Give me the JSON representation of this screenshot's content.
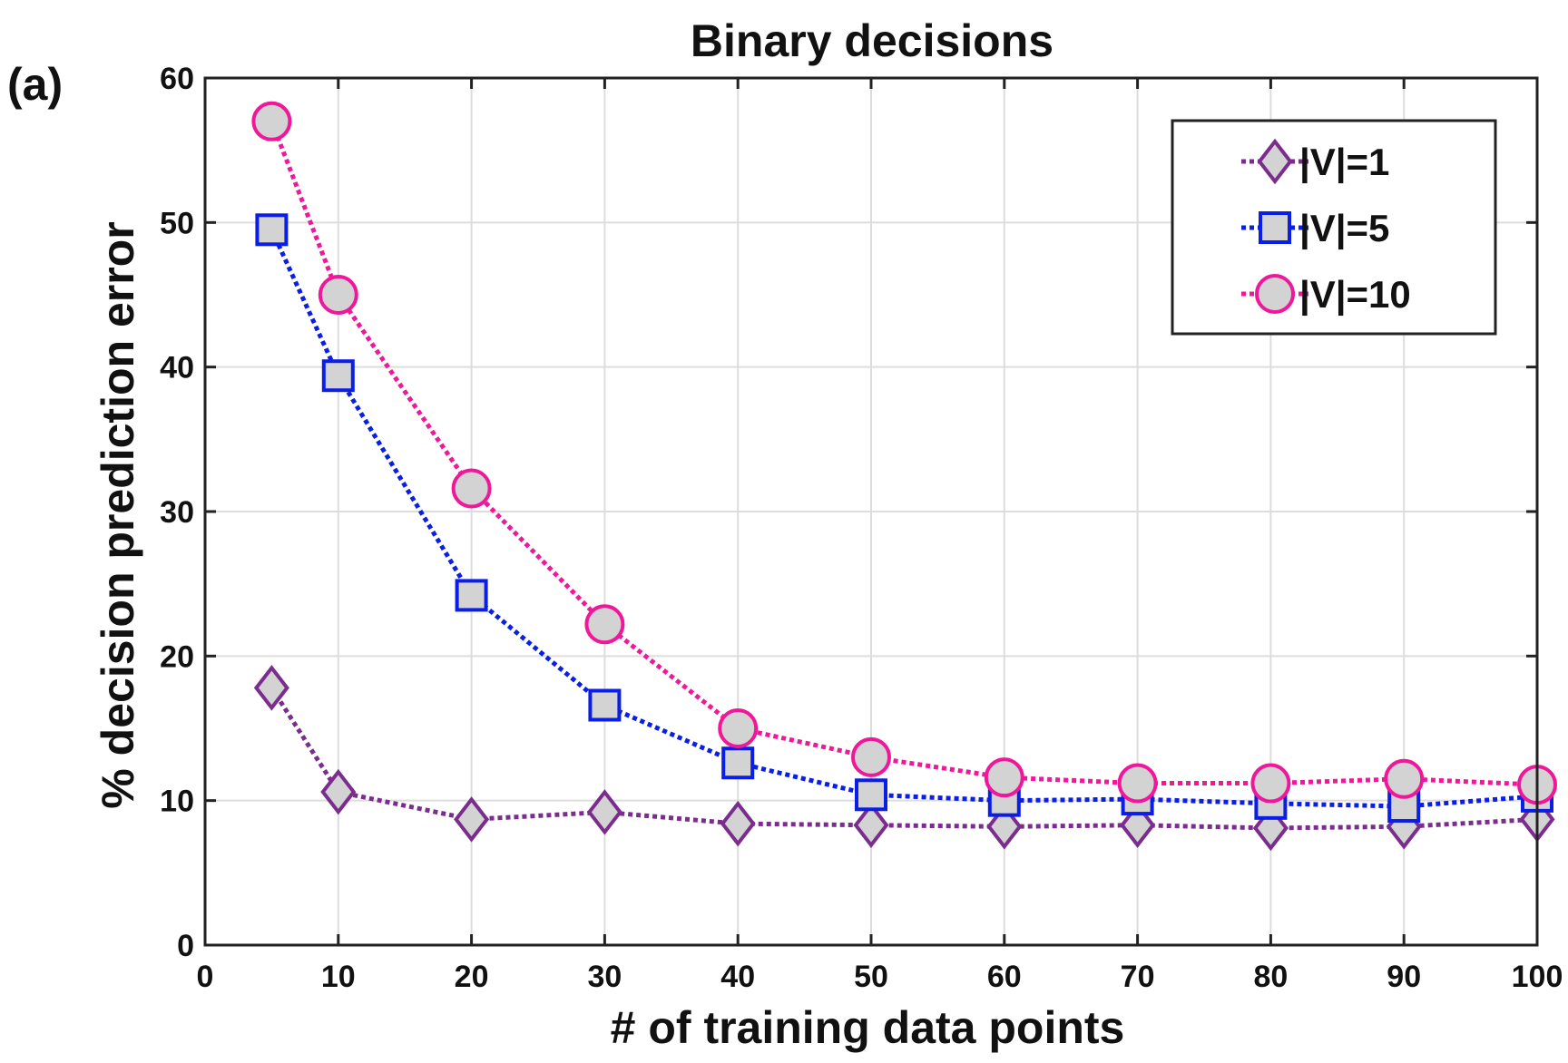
{
  "panel_label": "(a)",
  "chart_data": {
    "type": "line",
    "title": "Binary decisions",
    "xlabel": "# of training data points",
    "ylabel": "% decision prediction error",
    "xlim": [
      0,
      100
    ],
    "ylim": [
      0,
      60
    ],
    "xticks": [
      0,
      10,
      20,
      30,
      40,
      50,
      60,
      70,
      80,
      90,
      100
    ],
    "yticks": [
      0,
      10,
      20,
      30,
      40,
      50,
      60
    ],
    "grid": true,
    "legend_position": "top-right",
    "x": [
      5,
      10,
      20,
      30,
      40,
      50,
      60,
      70,
      80,
      90,
      100
    ],
    "series": [
      {
        "name": "|V|=1",
        "marker": "diamond",
        "color": "#7B2D8E",
        "fill": "#D3D3D3",
        "values": [
          17.8,
          10.6,
          8.7,
          9.2,
          8.4,
          8.3,
          8.2,
          8.3,
          8.1,
          8.2,
          8.7
        ]
      },
      {
        "name": "|V|=5",
        "marker": "square",
        "color": "#0A1EE6",
        "fill": "#D3D3D3",
        "values": [
          49.5,
          39.4,
          24.2,
          16.6,
          12.6,
          10.4,
          10.0,
          10.1,
          9.8,
          9.6,
          10.3
        ]
      },
      {
        "name": "|V|=10",
        "marker": "circle",
        "color": "#F0189A",
        "fill": "#D3D3D3",
        "values": [
          57.0,
          45.0,
          31.6,
          22.2,
          15.0,
          13.0,
          11.6,
          11.2,
          11.2,
          11.5,
          11.1
        ]
      }
    ]
  }
}
